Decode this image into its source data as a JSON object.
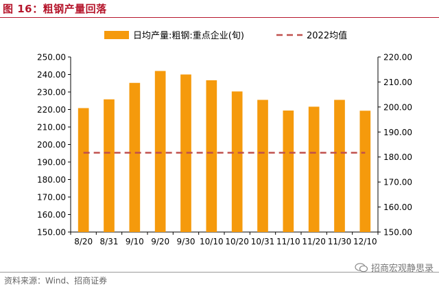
{
  "figure": {
    "title": "图 16：粗钢产量回落",
    "source": "资料来源：Wind、招商证券",
    "watermark": "招商宏观静思录"
  },
  "colors": {
    "bar": "#f59a0c",
    "dash": "#c0504d",
    "title": "#b5152b"
  },
  "chart_data": {
    "type": "bar",
    "categories": [
      "8/20",
      "8/31",
      "9/10",
      "9/20",
      "9/30",
      "10/10",
      "10/20",
      "10/31",
      "11/10",
      "11/20",
      "11/30",
      "12/10"
    ],
    "series": [
      {
        "name": "日均产量:粗钢:重点企业(旬)",
        "type": "bar",
        "axis": "left",
        "values": [
          220.8,
          225.8,
          235.2,
          242.0,
          240.0,
          236.7,
          230.3,
          225.5,
          219.4,
          221.6,
          225.5,
          219.3
        ]
      },
      {
        "name": "2022均值",
        "type": "line",
        "style": "dashed",
        "axis": "right",
        "values": [
          181.7,
          181.7,
          181.7,
          181.7,
          181.7,
          181.7,
          181.7,
          181.7,
          181.7,
          181.7,
          181.7,
          181.7
        ]
      }
    ],
    "y_left": {
      "min": 150,
      "max": 250,
      "step": 10,
      "ticks": [
        "150.00",
        "160.00",
        "170.00",
        "180.00",
        "190.00",
        "200.00",
        "210.00",
        "220.00",
        "230.00",
        "240.00",
        "250.00"
      ]
    },
    "y_right": {
      "min": 150,
      "max": 220,
      "step": 10,
      "ticks": [
        "150.00",
        "160.00",
        "170.00",
        "180.00",
        "190.00",
        "200.00",
        "210.00",
        "220.00"
      ]
    },
    "grid": false,
    "legend_position": "top"
  }
}
